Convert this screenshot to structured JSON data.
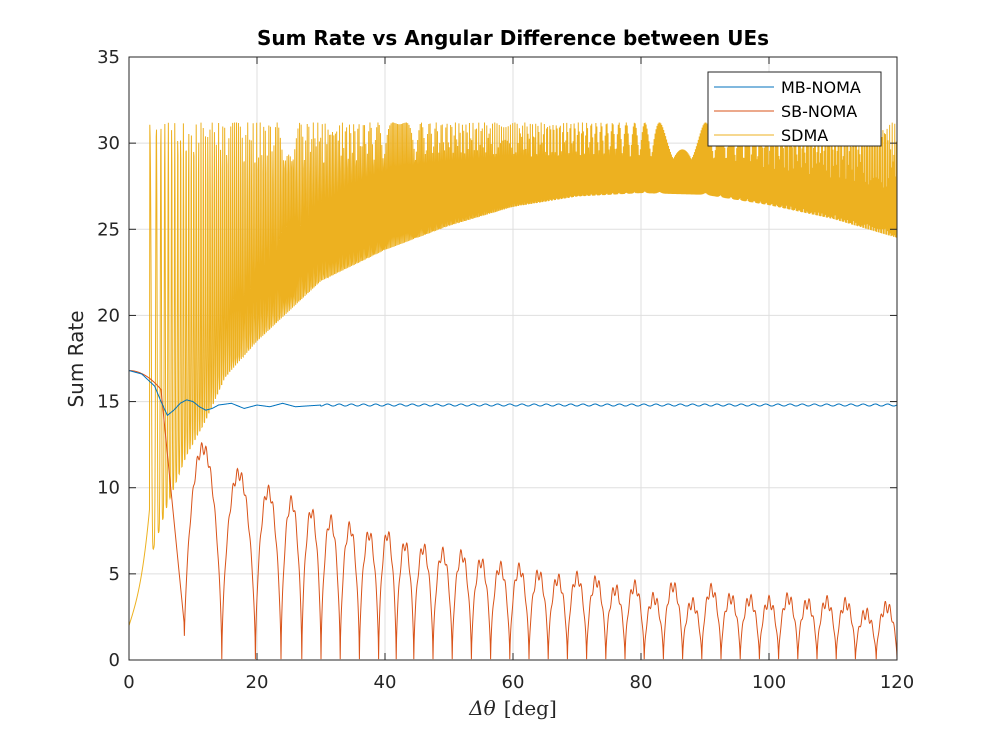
{
  "chart_data": {
    "type": "line",
    "title": "Sum Rate vs Angular Difference between UEs",
    "xlabel_symbol": "Δθ",
    "xlabel_unit": "[deg]",
    "ylabel": "Sum Rate",
    "xlim": [
      0,
      120
    ],
    "ylim": [
      0,
      35
    ],
    "xticks": [
      0,
      20,
      40,
      60,
      80,
      100,
      120
    ],
    "yticks": [
      0,
      5,
      10,
      15,
      20,
      25,
      30,
      35
    ],
    "grid": true,
    "legend_position": "top-right",
    "series": [
      {
        "name": "MB-NOMA",
        "color": "#0072BD",
        "description": "starts at 16.8, dips to about 14.2 near 6 deg, damped oscillation settling at about 14.8",
        "x": [
          0,
          2,
          4,
          5,
          6,
          7,
          8,
          9,
          10,
          11,
          12,
          13,
          14,
          16,
          18,
          20,
          22,
          24,
          26,
          30,
          40,
          60,
          80,
          100,
          120
        ],
        "y": [
          16.8,
          16.6,
          15.9,
          15.0,
          14.2,
          14.5,
          14.9,
          15.1,
          15.0,
          14.7,
          14.5,
          14.6,
          14.8,
          14.9,
          14.6,
          14.8,
          14.7,
          14.9,
          14.7,
          14.8,
          14.8,
          14.8,
          14.8,
          14.8,
          14.8
        ]
      },
      {
        "name": "SB-NOMA",
        "color": "#D95319",
        "description": "starts at 16.8, falls with oscillating lobes and deep nulls; lobe peaks decay from about 12.3 to about 3",
        "lobe_peaks_x": [
          11.5,
          17.5,
          22.0,
          25.5,
          28.5,
          31.5,
          34.5,
          37.5,
          40.5,
          43.0,
          46.0,
          49.0,
          52.0,
          55.0,
          58.0,
          61.0,
          64.0,
          67.0,
          70.0,
          73.0,
          76.0,
          79.0,
          82.0,
          85.0,
          88.0,
          91.0,
          94.0,
          97.0,
          100.0,
          103.0,
          106.0,
          109.0,
          112.0,
          115.0,
          118.5
        ],
        "lobe_peaks_y": [
          12.3,
          10.8,
          9.8,
          9.2,
          8.6,
          8.1,
          7.7,
          7.3,
          7.3,
          6.7,
          6.5,
          6.2,
          6.1,
          5.7,
          5.4,
          5.3,
          5.0,
          4.7,
          4.8,
          4.6,
          4.1,
          4.3,
          3.6,
          4.3,
          3.3,
          4.1,
          3.6,
          3.5,
          3.4,
          3.6,
          3.3,
          3.4,
          3.3,
          2.7,
          3.1
        ],
        "end_value": 0.3
      },
      {
        "name": "SDMA",
        "color": "#EDB120",
        "description": "starts at 2, rises sharply, then rapid oscillation with constant peaks of 31.2 and troughs rising from about 9 to about 27 near 80 deg then declining to about 24.5 at 120",
        "peak_value": 31.2,
        "trough_x": [
          0,
          6,
          9,
          12,
          15,
          20,
          30,
          40,
          50,
          60,
          70,
          80,
          90,
          100,
          110,
          120
        ],
        "trough_y": [
          2,
          9.0,
          11.9,
          13.9,
          16.4,
          18.5,
          22.0,
          23.8,
          25.2,
          26.3,
          26.9,
          27.1,
          27.0,
          26.4,
          25.6,
          24.5
        ]
      }
    ]
  }
}
